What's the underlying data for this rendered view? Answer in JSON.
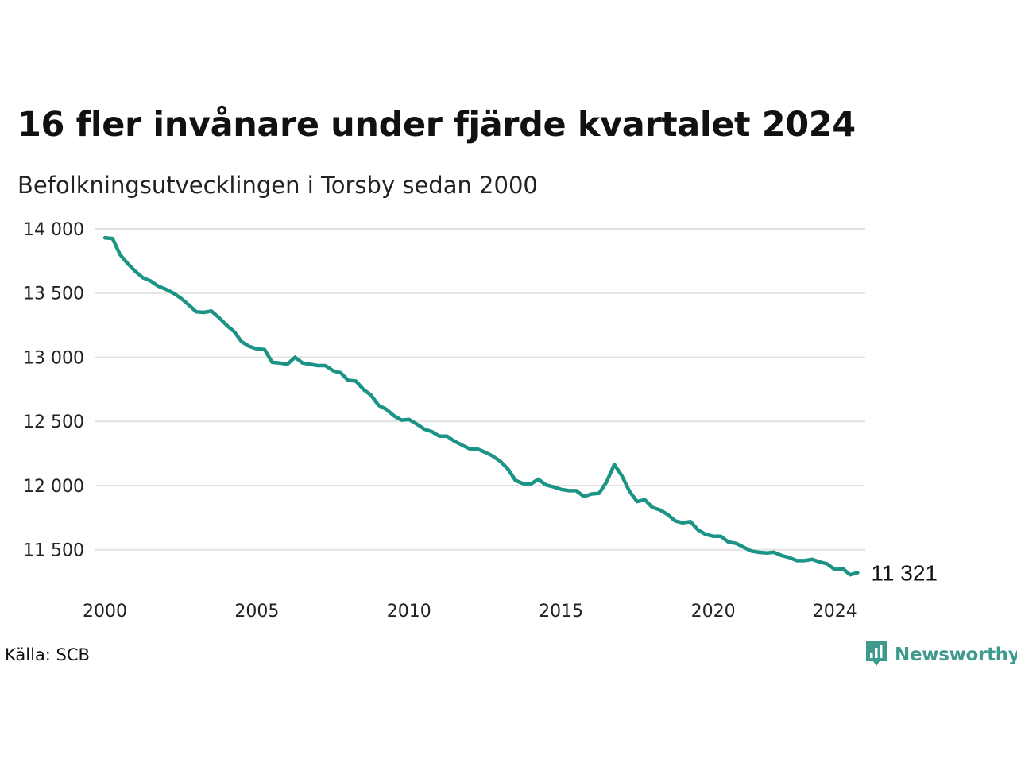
{
  "title": "16 fler invånare under fjärde kvartalet 2024",
  "subtitle": "Befolkningsutvecklingen i Torsby sedan 2000",
  "source": "Källa: SCB",
  "logo_text": "Newsworthy",
  "logo_icon": "newsworthy-logo-icon",
  "colors": {
    "line": "#1b9485",
    "grid": "#e2e2e2",
    "logo": "#3e9a8c"
  },
  "chart_data": {
    "type": "line",
    "title": "16 fler invånare under fjärde kvartalet 2024",
    "subtitle": "Befolkningsutvecklingen i Torsby sedan 2000",
    "xlabel": "",
    "ylabel": "",
    "xlim": [
      2000,
      2025
    ],
    "ylim": [
      11300,
      14000
    ],
    "grid": true,
    "legend": "none",
    "y_ticks": [
      {
        "value": 14000,
        "label": "14 000"
      },
      {
        "value": 13500,
        "label": "13 500"
      },
      {
        "value": 13000,
        "label": "13 000"
      },
      {
        "value": 12500,
        "label": "12 500"
      },
      {
        "value": 12000,
        "label": "12 000"
      },
      {
        "value": 11500,
        "label": "11 500"
      }
    ],
    "x_ticks": [
      {
        "value": 2000,
        "label": "2000"
      },
      {
        "value": 2005,
        "label": "2005"
      },
      {
        "value": 2010,
        "label": "2010"
      },
      {
        "value": 2015,
        "label": "2015"
      },
      {
        "value": 2020,
        "label": "2020"
      },
      {
        "value": 2024,
        "label": "2024"
      }
    ],
    "end_label": "11 321",
    "series": [
      {
        "x": [
          2000,
          2000.25,
          2000.5,
          2000.75,
          2001,
          2001.25,
          2001.5,
          2001.75,
          2002,
          2002.25,
          2002.5,
          2002.75,
          2003,
          2003.25,
          2003.5,
          2003.75,
          2004,
          2004.25,
          2004.5,
          2004.75,
          2005,
          2005.25,
          2005.5,
          2005.75,
          2006,
          2006.25,
          2006.5,
          2006.75,
          2007,
          2007.25,
          2007.5,
          2007.75,
          2008,
          2008.25,
          2008.5,
          2008.75,
          2009,
          2009.25,
          2009.5,
          2009.75,
          2010,
          2010.25,
          2010.5,
          2010.75,
          2011,
          2011.25,
          2011.5,
          2011.75,
          2012,
          2012.25,
          2012.5,
          2012.75,
          2013,
          2013.25,
          2013.5,
          2013.75,
          2014,
          2014.25,
          2014.5,
          2014.75,
          2015,
          2015.25,
          2015.5,
          2015.75,
          2016,
          2016.25,
          2016.5,
          2016.75,
          2017,
          2017.25,
          2017.5,
          2017.75,
          2018,
          2018.25,
          2018.5,
          2018.75,
          2019,
          2019.25,
          2019.5,
          2019.75,
          2020,
          2020.25,
          2020.5,
          2020.75,
          2021,
          2021.25,
          2021.5,
          2021.75,
          2022,
          2022.25,
          2022.5,
          2022.75,
          2023,
          2023.25,
          2023.5,
          2023.75,
          2024,
          2024.25,
          2024.5,
          2024.75
        ],
        "values": [
          13930,
          13925,
          13800,
          13730,
          13670,
          13620,
          13595,
          13555,
          13530,
          13500,
          13460,
          13410,
          13355,
          13350,
          13360,
          13310,
          13250,
          13200,
          13120,
          13085,
          13065,
          13060,
          12960,
          12955,
          12945,
          13000,
          12955,
          12945,
          12935,
          12935,
          12895,
          12880,
          12820,
          12815,
          12750,
          12705,
          12625,
          12595,
          12545,
          12510,
          12515,
          12480,
          12440,
          12420,
          12385,
          12385,
          12345,
          12315,
          12285,
          12285,
          12260,
          12230,
          12190,
          12130,
          12040,
          12015,
          12010,
          12050,
          12005,
          11990,
          11970,
          11960,
          11960,
          11915,
          11935,
          11940,
          12030,
          12165,
          12075,
          11955,
          11875,
          11890,
          11830,
          11810,
          11775,
          11725,
          11710,
          11720,
          11655,
          11620,
          11605,
          11605,
          11560,
          11550,
          11520,
          11490,
          11480,
          11475,
          11480,
          11455,
          11440,
          11415,
          11415,
          11425,
          11405,
          11390,
          11345,
          11355,
          11305,
          11321
        ]
      }
    ]
  }
}
